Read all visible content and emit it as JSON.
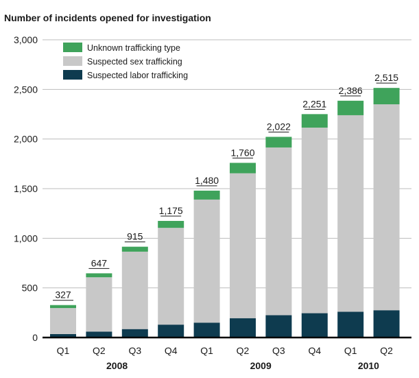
{
  "chart_data": {
    "type": "bar",
    "subtitle": "Number of incidents opened for investigation",
    "categories": [
      "Q1",
      "Q2",
      "Q3",
      "Q4",
      "Q1",
      "Q2",
      "Q3",
      "Q4",
      "Q1",
      "Q2"
    ],
    "groups": [
      {
        "label": "2008",
        "start": 0,
        "end": 3
      },
      {
        "label": "2009",
        "start": 4,
        "end": 7
      },
      {
        "label": "2010",
        "start": 8,
        "end": 9
      }
    ],
    "totals": [
      327,
      647,
      915,
      1175,
      1480,
      1760,
      2022,
      2251,
      2386,
      2515
    ],
    "total_labels": [
      "327",
      "647",
      "915",
      "1,175",
      "1,480",
      "1,760",
      "2,022",
      "2,251",
      "2,386",
      "2,515"
    ],
    "series": [
      {
        "name": "Suspected labor trafficking",
        "color": "#0e3b4f",
        "values": [
          35,
          60,
          85,
          130,
          150,
          195,
          225,
          245,
          260,
          275
        ]
      },
      {
        "name": "Suspected sex trafficking",
        "color": "#c8c8c8",
        "values": [
          262,
          547,
          780,
          975,
          1240,
          1460,
          1690,
          1870,
          1980,
          2075
        ]
      },
      {
        "name": "Unknown trafficking type",
        "color": "#3fa35b",
        "values": [
          30,
          40,
          50,
          70,
          90,
          105,
          107,
          136,
          146,
          165
        ]
      }
    ],
    "legend_order": [
      "Unknown trafficking type",
      "Suspected sex trafficking",
      "Suspected labor trafficking"
    ],
    "ylim": [
      0,
      3000
    ],
    "yticks": [
      0,
      500,
      1000,
      1500,
      2000,
      2500,
      3000
    ],
    "ytick_labels": [
      "0",
      "500",
      "1,000",
      "1,500",
      "2,000",
      "2,500",
      "3,000"
    ],
    "grid": true,
    "legend_position": "top-left"
  }
}
